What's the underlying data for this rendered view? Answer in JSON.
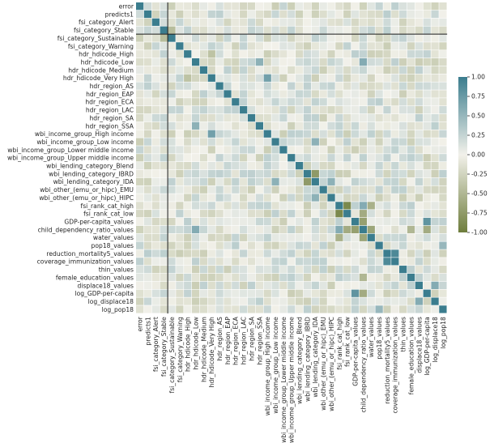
{
  "chart_data": {
    "type": "heatmap",
    "title": "",
    "xlabel": "",
    "ylabel": "",
    "labels": [
      "error",
      "predicts1",
      "fsi_category_Alert",
      "fsi_category_Stable",
      "fsi_category_Sustainable",
      "fsi_category_Warning",
      "hdr_hdicode_High",
      "hdr_hdicode_Low",
      "hdr_hdicode_Medium",
      "hdr_hdicode_Very High",
      "hdr_region_AS",
      "hdr_region_EAP",
      "hdr_region_ECA",
      "hdr_region_LAC",
      "hdr_region_SA",
      "hdr_region_SSA",
      "wbi_income_group_High income",
      "wbi_income_group_Low income",
      "wbi_income_group_Lower middle income",
      "wbi_income_group_Upper middle income",
      "wbi_lending_category_Blend",
      "wbi_lending_category_IBRD",
      "wbi_lending_category_IDA",
      "wbi_other_(emu_or_hipc)_EMU",
      "wbi_other_(emu_or_hipc)_HIPC",
      "fsi_rank_cat_high",
      "fsi_rank_cat_low",
      "GDP-per-capita_values",
      "child_dependency_ratio_values",
      "water_values",
      "pop18_values",
      "reduction_mortality5_values",
      "coverage_immunization_values",
      "thin_values",
      "female_education_values",
      "displace18_values",
      "log_GDP-per-capita",
      "log_displace18",
      "log_pop18"
    ],
    "colorbar": {
      "vmin": -1.0,
      "vmax": 1.0,
      "ticks": [
        "1.00",
        "0.75",
        "0.50",
        "0.25",
        "0.00",
        "-0.25",
        "-0.50",
        "-0.75",
        "-1.00"
      ],
      "tick_values": [
        1.0,
        0.75,
        0.5,
        0.25,
        0.0,
        -0.25,
        -0.5,
        -0.75,
        -1.0
      ]
    },
    "colors": {
      "negative": "#6e7d3c",
      "zero": "#f2f1ea",
      "positive": "#3b7d8e"
    },
    "highlight_lines": [
      "after:fsi_category_Stable"
    ],
    "strong_pairs": [
      {
        "a": "fsi_rank_cat_high",
        "b": "fsi_rank_cat_low",
        "value": -0.9
      },
      {
        "a": "GDP-per-capita_values",
        "b": "child_dependency_ratio_values",
        "value": -0.7
      },
      {
        "a": "reduction_mortality5_values",
        "b": "coverage_immunization_values",
        "value": 0.9
      },
      {
        "a": "GDP-per-capita_values",
        "b": "log_GDP-per-capita",
        "value": 0.8
      },
      {
        "a": "wbi_lending_category_IBRD",
        "b": "wbi_lending_category_IDA",
        "value": -0.75
      },
      {
        "a": "hdr_hdicode_Low",
        "b": "child_dependency_ratio_values",
        "value": 0.6
      },
      {
        "a": "hdr_hdicode_Very High",
        "b": "wbi_income_group_High income",
        "value": 0.7
      },
      {
        "a": "hdr_hdicode_Low",
        "b": "hdr_region_SSA",
        "value": 0.55
      },
      {
        "a": "fsi_rank_cat_low",
        "b": "child_dependency_ratio_values",
        "value": -0.6
      },
      {
        "a": "fsi_rank_cat_high",
        "b": "child_dependency_ratio_values",
        "value": 0.6
      },
      {
        "a": "water_values",
        "b": "child_dependency_ratio_values",
        "value": -0.65
      },
      {
        "a": "displace18_values",
        "b": "log_displace18",
        "value": 0.6
      },
      {
        "a": "pop18_values",
        "b": "log_pop18",
        "value": 0.5
      },
      {
        "a": "fsi_category_Stable",
        "b": "fsi_category_Sustainable",
        "value": -0.45
      },
      {
        "a": "hdr_hdicode_High",
        "b": "hdr_hdicode_Very High",
        "value": -0.4
      },
      {
        "a": "wbi_income_group_Low income",
        "b": "wbi_lending_category_IDA",
        "value": 0.55
      },
      {
        "a": "wbi_other_(emu_or_hipc)_HIPC",
        "b": "wbi_lending_category_IDA",
        "value": 0.55
      },
      {
        "a": "female_education_values",
        "b": "child_dependency_ratio_values",
        "value": -0.5
      },
      {
        "a": "water_values",
        "b": "fsi_rank_cat_high",
        "value": -0.55
      },
      {
        "a": "log_GDP-per-capita",
        "b": "child_dependency_ratio_values",
        "value": -0.6
      }
    ]
  }
}
